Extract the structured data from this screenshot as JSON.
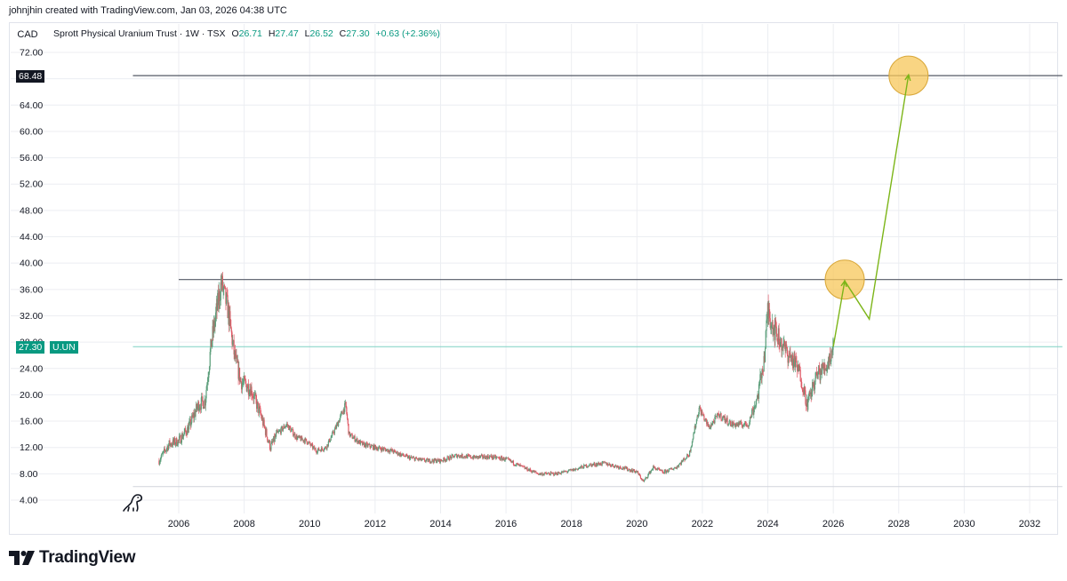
{
  "header": {
    "credit": "johnjhin created with TradingView.com, Jan 03, 2026 04:38 UTC"
  },
  "legend": {
    "currency": "CAD",
    "symbol_desc": "Sprott Physical Uranium Trust · 1W · TSX",
    "open_label": "O",
    "open": "26.71",
    "high_label": "H",
    "high": "27.47",
    "low_label": "L",
    "low": "26.52",
    "close_label": "C",
    "close": "27.30",
    "change": "+0.63 (+2.36%)"
  },
  "price_tags": {
    "target": "68.48",
    "last": "27.30",
    "ticker": "U.UN"
  },
  "brand": {
    "name": "TradingView"
  },
  "colors": {
    "up": "#089981",
    "down": "#f23645",
    "candle_up": "#5b9e7a",
    "candle_down": "#e05a66",
    "projection": "#7cb518",
    "circle_fill": "#f7c75a",
    "circle_stroke": "#d9a83a",
    "hline": "#131722",
    "last_line": "#7fd1c3",
    "grid": "#eceef2"
  },
  "chart_data": {
    "type": "candlestick",
    "symbol": "U.UN",
    "interval": "1W",
    "yticks": [
      "4.00",
      "8.00",
      "12.00",
      "16.00",
      "20.00",
      "24.00",
      "28.00",
      "32.00",
      "36.00",
      "40.00",
      "44.00",
      "48.00",
      "52.00",
      "56.00",
      "60.00",
      "64.00",
      "68.00",
      "72.00"
    ],
    "xticks": [
      "2006",
      "2008",
      "2010",
      "2012",
      "2014",
      "2016",
      "2018",
      "2020",
      "2022",
      "2024",
      "2026",
      "2028",
      "2030",
      "2032"
    ],
    "ylim": [
      3.0,
      73.5
    ],
    "xlim": [
      2004.6,
      2033.0
    ],
    "price_path": [
      [
        2005.4,
        10.0
      ],
      [
        2005.7,
        12.5
      ],
      [
        2006.0,
        13.0
      ],
      [
        2006.3,
        15.0
      ],
      [
        2006.6,
        18.5
      ],
      [
        2006.8,
        19.0
      ],
      [
        2007.0,
        28.0
      ],
      [
        2007.2,
        34.0
      ],
      [
        2007.3,
        37.0
      ],
      [
        2007.5,
        33.0
      ],
      [
        2007.7,
        26.0
      ],
      [
        2007.9,
        22.0
      ],
      [
        2008.2,
        21.0
      ],
      [
        2008.5,
        17.0
      ],
      [
        2008.8,
        12.0
      ],
      [
        2009.0,
        14.0
      ],
      [
        2009.3,
        15.5
      ],
      [
        2009.6,
        13.5
      ],
      [
        2009.9,
        13.0
      ],
      [
        2010.2,
        11.5
      ],
      [
        2010.5,
        12.0
      ],
      [
        2010.8,
        15.0
      ],
      [
        2011.1,
        18.5
      ],
      [
        2011.2,
        14.0
      ],
      [
        2011.6,
        12.5
      ],
      [
        2012.0,
        12.0
      ],
      [
        2012.5,
        11.5
      ],
      [
        2013.0,
        10.5
      ],
      [
        2013.5,
        10.0
      ],
      [
        2014.0,
        10.0
      ],
      [
        2014.5,
        10.8
      ],
      [
        2015.0,
        10.5
      ],
      [
        2015.5,
        10.6
      ],
      [
        2016.0,
        10.2
      ],
      [
        2016.5,
        9.0
      ],
      [
        2017.0,
        8.0
      ],
      [
        2017.5,
        8.0
      ],
      [
        2018.0,
        8.5
      ],
      [
        2018.5,
        9.3
      ],
      [
        2019.0,
        9.6
      ],
      [
        2019.5,
        9.0
      ],
      [
        2020.0,
        8.3
      ],
      [
        2020.2,
        6.8
      ],
      [
        2020.5,
        9.0
      ],
      [
        2020.8,
        8.2
      ],
      [
        2021.2,
        9.0
      ],
      [
        2021.6,
        11.0
      ],
      [
        2021.9,
        18.0
      ],
      [
        2022.2,
        15.0
      ],
      [
        2022.5,
        17.0
      ],
      [
        2022.9,
        15.5
      ],
      [
        2023.4,
        15.5
      ],
      [
        2023.7,
        20.0
      ],
      [
        2023.9,
        26.0
      ],
      [
        2024.0,
        33.0
      ],
      [
        2024.2,
        30.0
      ],
      [
        2024.5,
        27.0
      ],
      [
        2024.8,
        25.0
      ],
      [
        2025.0,
        23.0
      ],
      [
        2025.2,
        18.5
      ],
      [
        2025.5,
        23.0
      ],
      [
        2025.8,
        24.5
      ],
      [
        2026.0,
        27.3
      ]
    ],
    "horizontal_lines": [
      {
        "price": 68.48,
        "from": 2004.6,
        "to": 2033.0
      },
      {
        "price": 37.5,
        "from": 2006.0,
        "to": 2033.0
      },
      {
        "price": 27.3,
        "from": 2004.6,
        "to": 2033.0,
        "kind": "last_price"
      },
      {
        "price": 6.05,
        "from": 2004.6,
        "to": 2033.0,
        "kind": "lower_bound"
      }
    ],
    "projection_path": [
      [
        2026.0,
        27.3
      ],
      [
        2026.35,
        37.3
      ],
      [
        2027.1,
        31.5
      ],
      [
        2028.3,
        68.6
      ]
    ],
    "target_circles": [
      {
        "x": 2026.35,
        "y": 37.5
      },
      {
        "x": 2028.3,
        "y": 68.48
      }
    ]
  }
}
